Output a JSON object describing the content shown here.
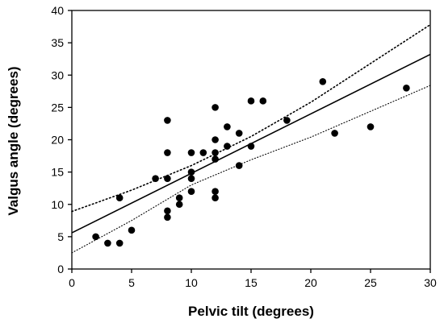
{
  "chart_data": {
    "type": "scatter",
    "title": "",
    "xlabel": "Pelvic tilt (degrees)",
    "ylabel": "Valgus angle (degrees)",
    "xlim": [
      0,
      30
    ],
    "ylim": [
      0,
      40
    ],
    "xticks": [
      0,
      5,
      10,
      15,
      20,
      25,
      30
    ],
    "yticks": [
      0,
      5,
      10,
      15,
      20,
      25,
      30,
      35,
      40
    ],
    "grid": false,
    "points": [
      {
        "x": 2,
        "y": 5
      },
      {
        "x": 3,
        "y": 4
      },
      {
        "x": 4,
        "y": 4
      },
      {
        "x": 4,
        "y": 11
      },
      {
        "x": 5,
        "y": 6
      },
      {
        "x": 7,
        "y": 14
      },
      {
        "x": 8,
        "y": 8
      },
      {
        "x": 8,
        "y": 9
      },
      {
        "x": 8,
        "y": 14
      },
      {
        "x": 8,
        "y": 18
      },
      {
        "x": 8,
        "y": 23
      },
      {
        "x": 9,
        "y": 10
      },
      {
        "x": 9,
        "y": 11
      },
      {
        "x": 10,
        "y": 12
      },
      {
        "x": 10,
        "y": 14
      },
      {
        "x": 10,
        "y": 15
      },
      {
        "x": 10,
        "y": 18
      },
      {
        "x": 11,
        "y": 18
      },
      {
        "x": 12,
        "y": 11
      },
      {
        "x": 12,
        "y": 12
      },
      {
        "x": 12,
        "y": 17
      },
      {
        "x": 12,
        "y": 18
      },
      {
        "x": 12,
        "y": 20
      },
      {
        "x": 12,
        "y": 25
      },
      {
        "x": 13,
        "y": 19
      },
      {
        "x": 13,
        "y": 22
      },
      {
        "x": 14,
        "y": 16
      },
      {
        "x": 14,
        "y": 21
      },
      {
        "x": 15,
        "y": 19
      },
      {
        "x": 15,
        "y": 26
      },
      {
        "x": 16,
        "y": 26
      },
      {
        "x": 18,
        "y": 23
      },
      {
        "x": 21,
        "y": 29
      },
      {
        "x": 22,
        "y": 21
      },
      {
        "x": 25,
        "y": 22
      },
      {
        "x": 28,
        "y": 28
      }
    ],
    "regression_line": {
      "x": [
        0,
        30
      ],
      "y": [
        5.6,
        33.2
      ]
    },
    "upper_confidence_band": {
      "x": [
        0,
        5,
        10,
        15,
        20,
        25,
        30
      ],
      "y": [
        8.9,
        12.2,
        16.0,
        20.5,
        25.8,
        31.8,
        37.8
      ]
    },
    "lower_confidence_band": {
      "x": [
        0,
        5,
        10,
        15,
        20,
        25,
        30
      ],
      "y": [
        2.5,
        7.5,
        13.0,
        16.9,
        20.4,
        24.4,
        28.4
      ]
    },
    "colors": {
      "points": "#000000",
      "lines": "#000000",
      "axes": "#000000"
    }
  }
}
